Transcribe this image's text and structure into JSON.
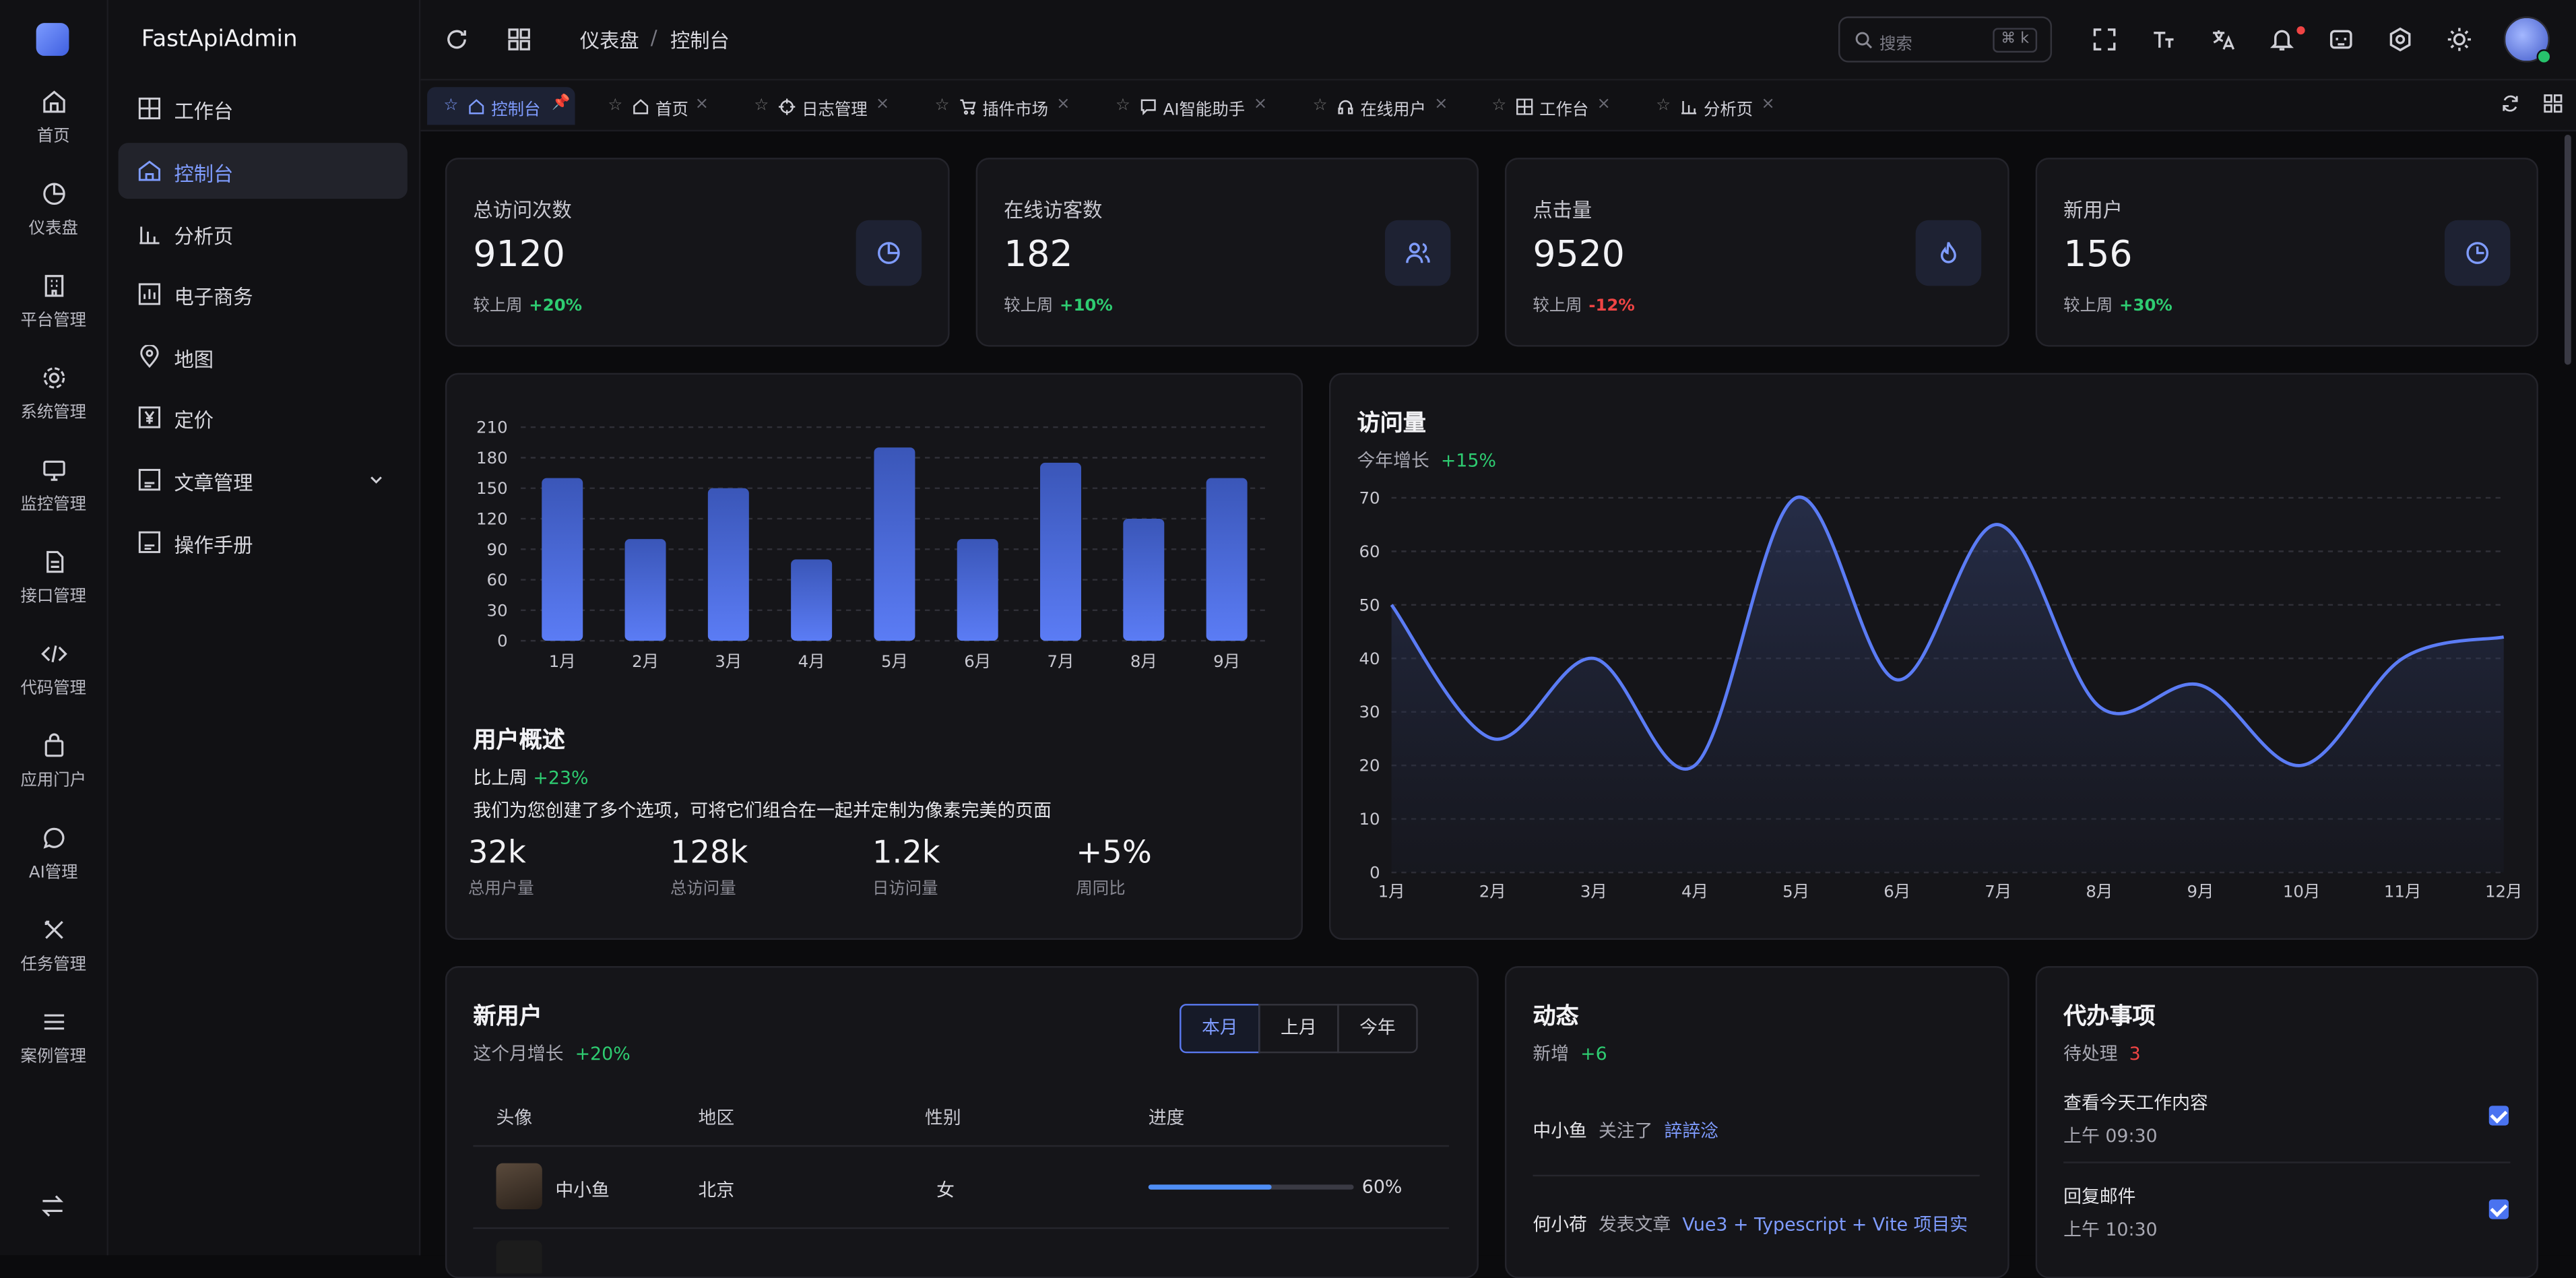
{
  "app": {
    "title": "FastApiAdmin"
  },
  "rail": [
    {
      "label": "首页",
      "icon": "home-icon"
    },
    {
      "label": "仪表盘",
      "icon": "dashboard-icon"
    },
    {
      "label": "平台管理",
      "icon": "building-icon"
    },
    {
      "label": "系统管理",
      "icon": "gear-icon"
    },
    {
      "label": "监控管理",
      "icon": "monitor-icon"
    },
    {
      "label": "接口管理",
      "icon": "document-icon"
    },
    {
      "label": "代码管理",
      "icon": "code-icon"
    },
    {
      "label": "应用门户",
      "icon": "bag-icon"
    },
    {
      "label": "AI管理",
      "icon": "chat-icon"
    },
    {
      "label": "任务管理",
      "icon": "tools-icon"
    },
    {
      "label": "案例管理",
      "icon": "menu-icon"
    }
  ],
  "sidebar": {
    "items": [
      {
        "label": "工作台",
        "icon": "grid-icon"
      },
      {
        "label": "控制台",
        "icon": "home-icon",
        "active": true
      },
      {
        "label": "分析页",
        "icon": "bar-chart-icon"
      },
      {
        "label": "电子商务",
        "icon": "chart-icon"
      },
      {
        "label": "地图",
        "icon": "map-pin-icon"
      },
      {
        "label": "定价",
        "icon": "yen-icon"
      },
      {
        "label": "文章管理",
        "icon": "article-icon",
        "expandable": true
      },
      {
        "label": "操作手册",
        "icon": "manual-icon"
      }
    ]
  },
  "header": {
    "breadcrumb": [
      "仪表盘",
      "控制台"
    ],
    "search_placeholder": "搜索",
    "search_shortcut": "⌘ k"
  },
  "tabs": [
    {
      "label": "控制台",
      "active": true,
      "pinned": true
    },
    {
      "label": "首页"
    },
    {
      "label": "日志管理"
    },
    {
      "label": "插件市场"
    },
    {
      "label": "AI智能助手"
    },
    {
      "label": "在线用户"
    },
    {
      "label": "工作台"
    },
    {
      "label": "分析页"
    }
  ],
  "stats": [
    {
      "label": "总访问次数",
      "value": "9120",
      "compare": "较上周",
      "delta": "+20%",
      "trend": "up",
      "icon": "pie-icon"
    },
    {
      "label": "在线访客数",
      "value": "182",
      "compare": "较上周",
      "delta": "+10%",
      "trend": "up",
      "icon": "users-icon"
    },
    {
      "label": "点击量",
      "value": "9520",
      "compare": "较上周",
      "delta": "-12%",
      "trend": "down",
      "icon": "fire-icon"
    },
    {
      "label": "新用户",
      "value": "156",
      "compare": "较上周",
      "delta": "+30%",
      "trend": "up",
      "icon": "clock-pie-icon"
    }
  ],
  "user_overview": {
    "title": "用户概述",
    "compare": "比上周",
    "delta": "+23%",
    "desc": "我们为您创建了多个选项，可将它们组合在一起并定制为像素完美的页面",
    "metrics": [
      {
        "value": "32k",
        "label": "总用户量"
      },
      {
        "value": "128k",
        "label": "总访问量"
      },
      {
        "value": "1.2k",
        "label": "日访问量"
      },
      {
        "value": "+5%",
        "label": "周同比"
      }
    ]
  },
  "visits": {
    "title": "访问量",
    "growth_label": "今年增长",
    "growth": "+15%"
  },
  "chart_data": [
    {
      "type": "bar",
      "categories": [
        "1月",
        "2月",
        "3月",
        "4月",
        "5月",
        "6月",
        "7月",
        "8月",
        "9月"
      ],
      "values": [
        160,
        100,
        150,
        80,
        190,
        100,
        175,
        120,
        160
      ],
      "ylim": [
        0,
        210
      ],
      "yticks": [
        0,
        30,
        60,
        90,
        120,
        150,
        180,
        210
      ],
      "grid": true,
      "color": "#5b7cf5"
    },
    {
      "type": "area",
      "x": [
        "1月",
        "2月",
        "3月",
        "4月",
        "5月",
        "6月",
        "7月",
        "8月",
        "9月",
        "10月",
        "11月",
        "12月"
      ],
      "values": [
        50,
        25,
        40,
        20,
        70,
        36,
        65,
        31,
        35,
        20,
        40,
        44
      ],
      "ylim": [
        0,
        70
      ],
      "yticks": [
        0,
        10,
        20,
        30,
        40,
        50,
        60,
        70
      ],
      "grid": true,
      "color": "#5b7cf5"
    }
  ],
  "new_users": {
    "title": "新用户",
    "growth_label": "这个月增长",
    "growth": "+20%",
    "segments": [
      "本月",
      "上月",
      "今年"
    ],
    "active_segment": 0,
    "columns": [
      "头像",
      "地区",
      "性别",
      "进度"
    ],
    "rows": [
      {
        "name": "中小鱼",
        "region": "北京",
        "gender": "女",
        "progress": 0.6,
        "progress_label": "60%"
      }
    ]
  },
  "activity": {
    "title": "动态",
    "new_label": "新增",
    "new_count": "+6",
    "items": [
      {
        "user": "中小鱼",
        "action": "关注了",
        "target": "誶誶淰"
      },
      {
        "user": "何小荷",
        "action": "发表文章",
        "target": "Vue3 + Typescript + Vite 项目实"
      }
    ]
  },
  "todo": {
    "title": "代办事项",
    "pending_label": "待处理",
    "pending_count": "3",
    "items": [
      {
        "title": "查看今天工作内容",
        "time": "上午 09:30",
        "done": true
      },
      {
        "title": "回复邮件",
        "time": "上午 10:30",
        "done": true
      }
    ]
  },
  "colors": {
    "accent": "#5b7cf5",
    "up": "#2ecc71",
    "down": "#ef4444",
    "bg": "#0b0b0d",
    "card": "#151519"
  }
}
